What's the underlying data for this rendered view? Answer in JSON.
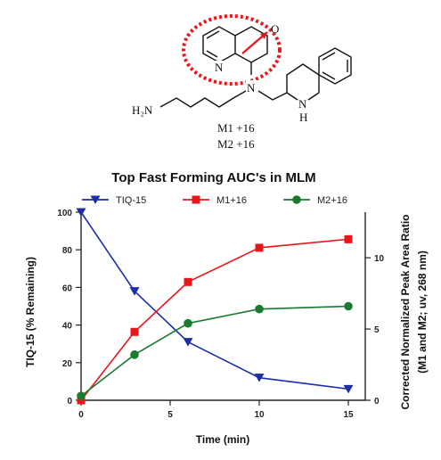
{
  "structure": {
    "atoms": {
      "n_ring": "N",
      "n_amine": "N",
      "o_atom": "O",
      "nh_n": "N",
      "nh_h": "H",
      "h2n": "H₂N"
    },
    "metabolites": [
      "M1 +16",
      "M2 +16"
    ],
    "highlight_color": "#e8161b"
  },
  "chart_data": {
    "type": "line",
    "title": "Top Fast Forming AUC's in MLM",
    "xlabel": "Time (min)",
    "ylabel_left": "TIQ-15 (% Remaining)",
    "ylabel_right": "Corrected Normalized Peak Area Ratio",
    "ylabel_right_sub": "(M1 and M2; uv, 268 nm)",
    "xlim": [
      0,
      15
    ],
    "xticks": [
      "0",
      "5",
      "10",
      "15"
    ],
    "xtick_values": [
      0,
      5,
      10,
      15
    ],
    "ylim_left": [
      0,
      100
    ],
    "yticks_left": [
      "0",
      "20",
      "40",
      "60",
      "80",
      "100"
    ],
    "ytick_values_left": [
      0,
      20,
      40,
      60,
      80,
      100
    ],
    "ylim_right": [
      0,
      13.2
    ],
    "yticks_right": [
      "0",
      "5",
      "10"
    ],
    "ytick_values_right": [
      0,
      5,
      10
    ],
    "legend_position": "top",
    "series": [
      {
        "name": "TIQ-15",
        "axis": "left",
        "color": "#1d2fa6",
        "marker": "triangle-down",
        "x": [
          0,
          3,
          6,
          10,
          15
        ],
        "y": [
          100,
          58,
          31,
          12,
          6
        ]
      },
      {
        "name": "M1+16",
        "axis": "right",
        "color": "#e8161b",
        "marker": "square",
        "x": [
          0,
          3,
          6,
          10,
          15
        ],
        "y": [
          0,
          4.8,
          8.3,
          10.7,
          11.3
        ]
      },
      {
        "name": "M2+16",
        "axis": "right",
        "color": "#1a7a30",
        "marker": "circle",
        "x": [
          0,
          3,
          6,
          10,
          15
        ],
        "y": [
          0.3,
          3.2,
          5.4,
          6.4,
          6.6
        ]
      }
    ]
  }
}
